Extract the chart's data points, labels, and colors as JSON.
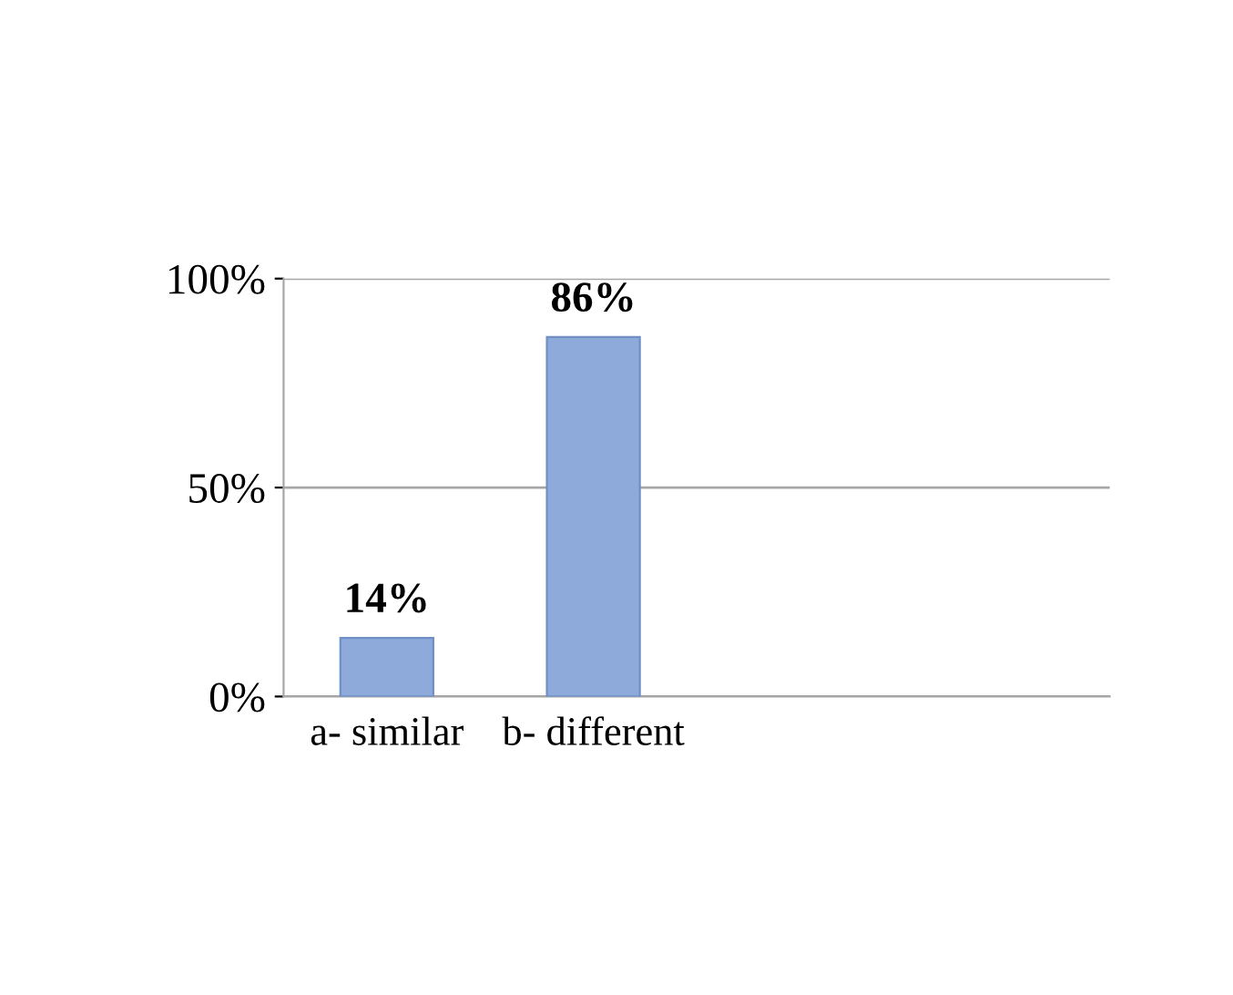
{
  "chart_data": {
    "type": "bar",
    "categories": [
      "a- similar",
      "b- different",
      null,
      null
    ],
    "values": [
      14,
      86,
      null,
      null
    ],
    "value_labels": [
      "14%",
      "86%",
      null,
      null
    ],
    "color": "#8eaadb",
    "ylim": [
      0,
      100
    ],
    "yticks": [
      {
        "value": 0,
        "label": "0%"
      },
      {
        "value": 50,
        "label": "50%"
      },
      {
        "value": 100,
        "label": "100%"
      }
    ],
    "grid": "y"
  }
}
